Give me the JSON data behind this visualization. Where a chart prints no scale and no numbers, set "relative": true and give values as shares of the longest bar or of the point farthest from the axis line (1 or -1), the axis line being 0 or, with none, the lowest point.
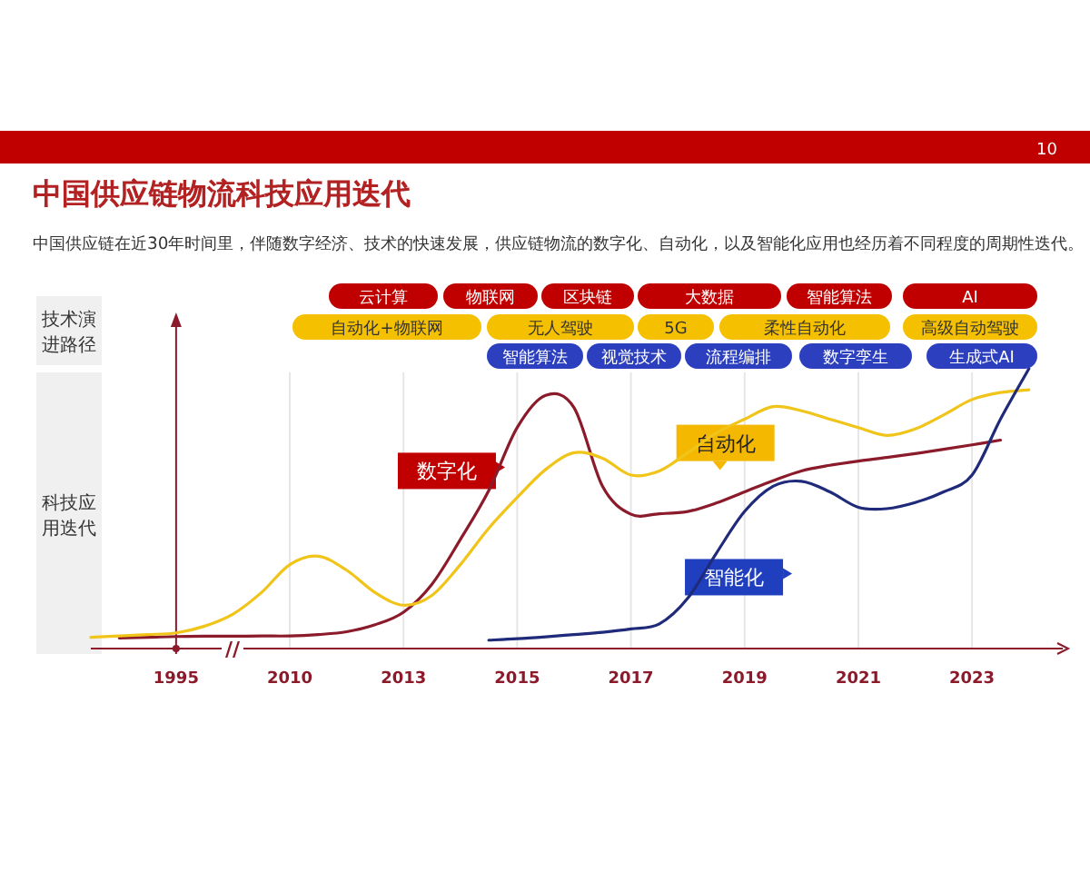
{
  "chart_data": {
    "type": "line",
    "relative": true,
    "title": "中国供应链物流科技应用迭代",
    "subtitle": "中国供应链在近30年时间里，伴随数字经济、技术的快速发展，供应链物流的数字化、自动化，以及智能化应用也经历着不同程度的周期性迭代。",
    "ylabel": "科技应用迭代",
    "categories": [
      null,
      null,
      null,
      "1995",
      null,
      null,
      null,
      "2010",
      null,
      null,
      null,
      "2013",
      null,
      null,
      null,
      "2015",
      null,
      null,
      null,
      "2017",
      null,
      null,
      null,
      "2019",
      null,
      null,
      null,
      "2021",
      null,
      null,
      null,
      "2023",
      null,
      null,
      null
    ],
    "grid": "x",
    "series": [
      {
        "name": "数字化",
        "color": "#8b1a2b",
        "values": [
          null,
          0.038,
          0.04,
          0.043,
          0.044,
          0.044,
          0.045,
          0.045,
          0.05,
          0.06,
          0.085,
          0.13,
          0.23,
          0.39,
          0.565,
          0.79,
          0.905,
          0.861,
          0.58,
          0.48,
          0.482,
          0.49,
          0.52,
          0.56,
          0.6,
          0.635,
          0.655,
          0.67,
          0.683,
          0.697,
          0.712,
          0.728,
          0.745,
          null,
          null
        ]
      },
      {
        "name": "自动化",
        "color": "#f0c419",
        "values": [
          0.04,
          0.045,
          0.05,
          0.056,
          0.08,
          0.123,
          0.2,
          0.3,
          0.33,
          0.28,
          0.2,
          0.155,
          0.19,
          0.3,
          0.43,
          0.54,
          0.64,
          0.7,
          0.68,
          0.62,
          0.635,
          0.7,
          0.77,
          0.82,
          0.865,
          0.85,
          0.82,
          0.79,
          0.762,
          0.785,
          0.835,
          0.89,
          0.915,
          0.925,
          null
        ]
      },
      {
        "name": "智能化",
        "color": "#1f2a7a",
        "values": [
          null,
          null,
          null,
          null,
          null,
          null,
          null,
          null,
          null,
          null,
          null,
          null,
          null,
          null,
          0.03,
          0.035,
          0.042,
          0.05,
          0.058,
          0.07,
          0.088,
          0.18,
          0.34,
          0.49,
          0.58,
          0.598,
          0.56,
          0.505,
          0.5,
          0.522,
          0.56,
          0.62,
          0.82,
          1.0,
          null
        ]
      }
    ],
    "annotations": [
      "10",
      "技术演进路径",
      "云计算",
      "物联网",
      "区块链",
      "大数据",
      "智能算法",
      "AI",
      "自动化+物联网",
      "无人驾驶",
      "5G",
      "柔性自动化",
      "高级自动驾驶",
      "智能算法",
      "视觉技术",
      "流程编排",
      "数字孪生",
      "生成式AI",
      "//"
    ]
  }
}
